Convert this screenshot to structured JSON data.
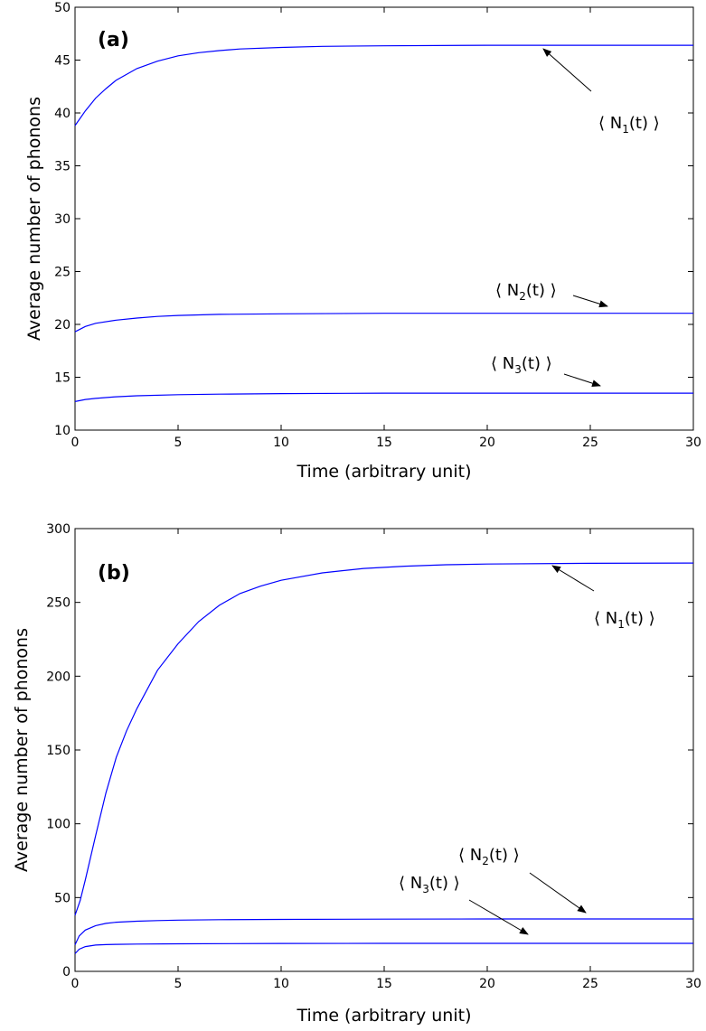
{
  "chart_data": [
    {
      "type": "line",
      "panel_label": "(a)",
      "xlabel": "Time (arbitrary unit)",
      "ylabel": "Average number of phonons",
      "xlim": [
        0,
        30
      ],
      "ylim": [
        10,
        50
      ],
      "xticks": [
        0,
        5,
        10,
        15,
        20,
        25,
        30
      ],
      "yticks": [
        10,
        15,
        20,
        25,
        30,
        35,
        40,
        45,
        50
      ],
      "line_color": "#0000ff",
      "series": [
        {
          "name": "N1",
          "annotation": {
            "pre": "⟨ N",
            "sub": "1",
            "post": "(t) ⟩"
          },
          "x": [
            0,
            0.5,
            1,
            1.5,
            2,
            3,
            4,
            5,
            6,
            7,
            8,
            10,
            12,
            15,
            20,
            25,
            30
          ],
          "y": [
            38.8,
            40.2,
            41.4,
            42.3,
            43.1,
            44.2,
            44.9,
            45.4,
            45.7,
            45.9,
            46.05,
            46.2,
            46.3,
            46.35,
            46.4,
            46.4,
            46.4
          ]
        },
        {
          "name": "N2",
          "annotation": {
            "pre": "⟨ N",
            "sub": "2",
            "post": "(t) ⟩"
          },
          "x": [
            0,
            0.5,
            1,
            2,
            3,
            4,
            5,
            7,
            10,
            15,
            20,
            25,
            30
          ],
          "y": [
            19.3,
            19.8,
            20.1,
            20.4,
            20.6,
            20.75,
            20.85,
            20.95,
            21.0,
            21.05,
            21.05,
            21.05,
            21.05
          ]
        },
        {
          "name": "N3",
          "annotation": {
            "pre": "⟨ N",
            "sub": "3",
            "post": "(t) ⟩"
          },
          "x": [
            0,
            0.5,
            1,
            2,
            3,
            5,
            7,
            10,
            15,
            20,
            25,
            30
          ],
          "y": [
            12.7,
            12.9,
            13.0,
            13.15,
            13.25,
            13.35,
            13.4,
            13.45,
            13.5,
            13.5,
            13.5,
            13.5
          ]
        }
      ]
    },
    {
      "type": "line",
      "panel_label": "(b)",
      "xlabel": "Time (arbitrary unit)",
      "ylabel": "Average number of phonons",
      "xlim": [
        0,
        30
      ],
      "ylim": [
        0,
        300
      ],
      "xticks": [
        0,
        5,
        10,
        15,
        20,
        25,
        30
      ],
      "yticks": [
        0,
        50,
        100,
        150,
        200,
        250,
        300
      ],
      "line_color": "#0000ff",
      "series": [
        {
          "name": "N1",
          "annotation": {
            "pre": "⟨ N",
            "sub": "1",
            "post": "(t) ⟩"
          },
          "x": [
            0,
            0.25,
            0.5,
            1,
            1.5,
            2,
            2.5,
            3,
            4,
            5,
            6,
            7,
            8,
            9,
            10,
            12,
            14,
            16,
            18,
            20,
            25,
            30
          ],
          "y": [
            38,
            48,
            62,
            92,
            121,
            145,
            163,
            178,
            204,
            222,
            237,
            248,
            256,
            261,
            265,
            270,
            273,
            274.5,
            275.5,
            276,
            276.5,
            276.7
          ]
        },
        {
          "name": "N2",
          "annotation": {
            "pre": "⟨ N",
            "sub": "2",
            "post": "(t) ⟩"
          },
          "x": [
            0,
            0.2,
            0.5,
            1,
            1.5,
            2,
            3,
            4,
            5,
            7,
            10,
            15,
            20,
            25,
            30
          ],
          "y": [
            18,
            24,
            28,
            31,
            32.5,
            33.3,
            34,
            34.4,
            34.7,
            35.0,
            35.2,
            35.4,
            35.5,
            35.5,
            35.5
          ]
        },
        {
          "name": "N3",
          "annotation": {
            "pre": "⟨ N",
            "sub": "3",
            "post": "(t) ⟩"
          },
          "x": [
            0,
            0.2,
            0.5,
            1,
            1.5,
            2,
            3,
            5,
            10,
            15,
            20,
            25,
            30
          ],
          "y": [
            12,
            15,
            16.8,
            17.8,
            18.1,
            18.3,
            18.5,
            18.7,
            18.9,
            19.0,
            19.0,
            19.0,
            19.0
          ]
        }
      ]
    }
  ]
}
